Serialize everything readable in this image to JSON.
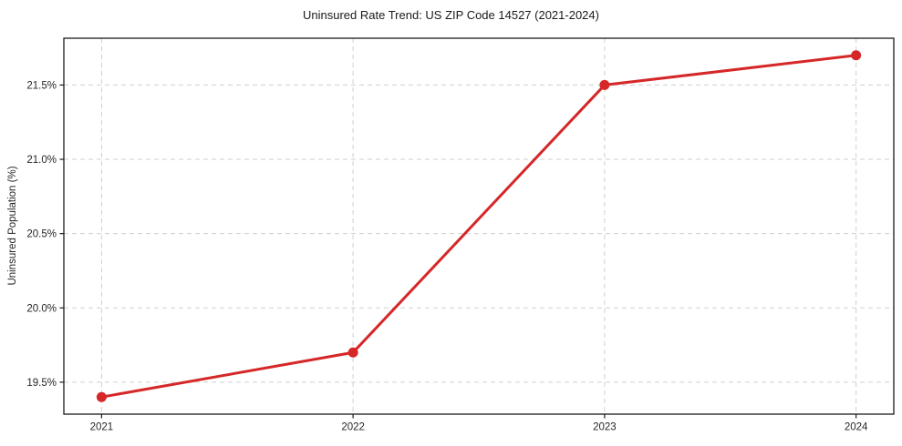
{
  "title": "Uninsured Rate Trend: US ZIP Code 14527 (2021-2024)",
  "chart_data": {
    "type": "line",
    "title": "Uninsured Rate Trend: US ZIP Code 14527 (2021-2024)",
    "xlabel": "",
    "ylabel": "Uninsured Population (%)",
    "x": [
      2021,
      2022,
      2023,
      2024
    ],
    "series": [
      {
        "name": "Uninsured Population (%)",
        "values": [
          19.4,
          19.7,
          21.5,
          21.7
        ]
      }
    ],
    "xticks": [
      2021,
      2022,
      2023,
      2024
    ],
    "xtick_labels": [
      "2021",
      "2022",
      "2023",
      "2024"
    ],
    "yticks": [
      19.5,
      20.0,
      20.5,
      21.0,
      21.5
    ],
    "ytick_labels": [
      "19.5%",
      "20.0%",
      "20.5%",
      "21.0%",
      "21.5%"
    ],
    "xlim": [
      2020.85,
      2024.15
    ],
    "ylim": [
      19.285,
      21.815
    ],
    "grid": true,
    "grid_style": "dashed",
    "legend": false,
    "colors": {
      "line": "#d62728",
      "marker": "#d62728",
      "grid": "#cfcfcf",
      "spine": "#1a1a1a",
      "tick_text": "#262626",
      "background": "#ffffff"
    }
  }
}
